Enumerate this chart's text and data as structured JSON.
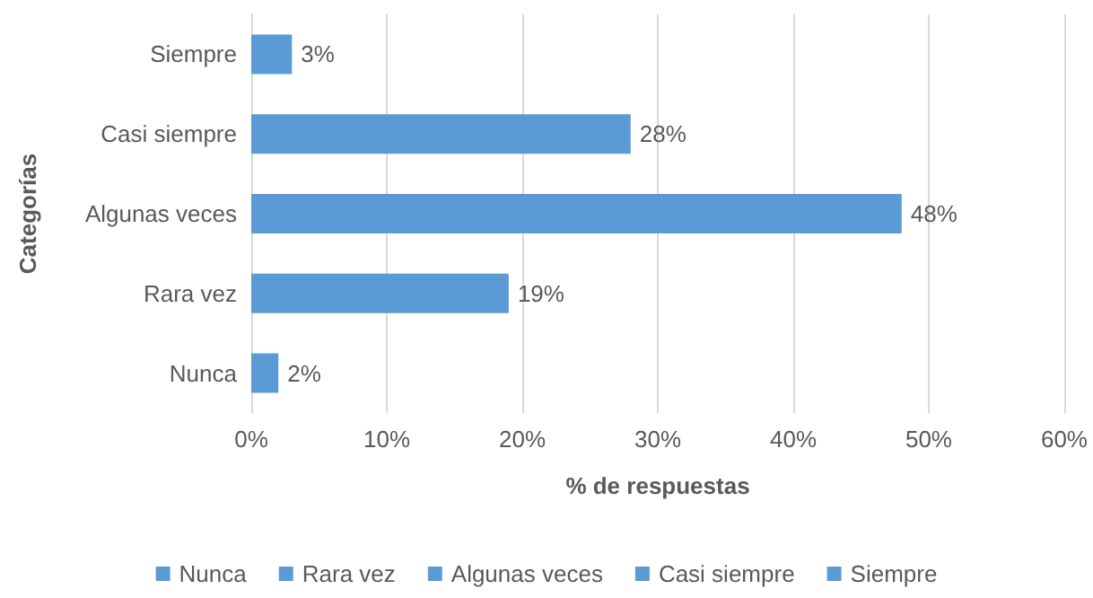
{
  "chart_data": {
    "type": "bar",
    "orientation": "horizontal",
    "stacked": true,
    "xlabel": "% de respuestas",
    "ylabel": "Categorías",
    "categories": [
      "Siempre",
      "Casi siempre",
      "Algunas veces",
      "Rara vez",
      "Nunca"
    ],
    "series": [
      {
        "name": "Nunca",
        "color": "#5b9bd5",
        "values": [
          null,
          null,
          null,
          null,
          2
        ],
        "value_labels": [
          null,
          null,
          null,
          null,
          "2%"
        ]
      },
      {
        "name": "Rara vez",
        "color": "#5b9bd5",
        "values": [
          null,
          null,
          null,
          19,
          null
        ],
        "value_labels": [
          null,
          null,
          null,
          "19%",
          null
        ]
      },
      {
        "name": "Algunas veces",
        "color": "#5b9bd5",
        "values": [
          null,
          null,
          48,
          null,
          null
        ],
        "value_labels": [
          null,
          null,
          "48%",
          null,
          null
        ]
      },
      {
        "name": "Casi siempre",
        "color": "#5b9bd5",
        "values": [
          null,
          28,
          null,
          null,
          null
        ],
        "value_labels": [
          null,
          "28%",
          null,
          null,
          null
        ]
      },
      {
        "name": "Siempre",
        "color": "#5b9bd5",
        "values": [
          3,
          null,
          null,
          null,
          null
        ],
        "value_labels": [
          "3%",
          null,
          null,
          null,
          null
        ]
      }
    ],
    "xlim": [
      0,
      60
    ],
    "xticks": [
      {
        "value": 0,
        "label": "0%"
      },
      {
        "value": 10,
        "label": "10%"
      },
      {
        "value": 20,
        "label": "20%"
      },
      {
        "value": 30,
        "label": "30%"
      },
      {
        "value": 40,
        "label": "40%"
      },
      {
        "value": 50,
        "label": "50%"
      },
      {
        "value": 60,
        "label": "60%"
      }
    ],
    "grid": "x",
    "legend": "bottom"
  }
}
